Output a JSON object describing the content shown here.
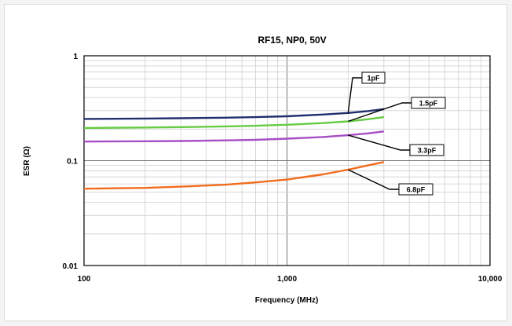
{
  "chart_data": {
    "type": "line",
    "title": "RF15, NP0, 50V",
    "xlabel": "Frequency (MHz)",
    "ylabel": "ESR (Ω)",
    "xscale": "log",
    "yscale": "log",
    "xlim": [
      100,
      10000
    ],
    "ylim": [
      0.01,
      1
    ],
    "grid": true,
    "x_ticks": [
      {
        "value": 100,
        "label": "100"
      },
      {
        "value": 1000,
        "label": "1,000"
      },
      {
        "value": 10000,
        "label": "10,000"
      }
    ],
    "y_ticks": [
      {
        "value": 0.01,
        "label": "0.01"
      },
      {
        "value": 0.1,
        "label": "0.1"
      },
      {
        "value": 1,
        "label": "1"
      }
    ],
    "series": [
      {
        "name": "1pF",
        "color": "#1f2f6e",
        "x": [
          100,
          200,
          300,
          500,
          700,
          1000,
          1500,
          2000,
          2500,
          3000
        ],
        "y": [
          0.25,
          0.252,
          0.254,
          0.257,
          0.26,
          0.265,
          0.275,
          0.285,
          0.297,
          0.31
        ]
      },
      {
        "name": "1.5pF",
        "color": "#66cc44",
        "x": [
          100,
          200,
          300,
          500,
          700,
          1000,
          1500,
          2000,
          2500,
          3000
        ],
        "y": [
          0.205,
          0.207,
          0.209,
          0.212,
          0.215,
          0.22,
          0.228,
          0.237,
          0.248,
          0.26
        ]
      },
      {
        "name": "3.3pF",
        "color": "#a64ec4",
        "x": [
          100,
          200,
          300,
          500,
          700,
          1000,
          1500,
          2000,
          2500,
          3000
        ],
        "y": [
          0.152,
          0.153,
          0.154,
          0.156,
          0.158,
          0.162,
          0.168,
          0.175,
          0.182,
          0.19
        ]
      },
      {
        "name": "6.8pF",
        "color": "#f26b1d",
        "x": [
          100,
          200,
          300,
          500,
          700,
          1000,
          1500,
          2000,
          2500,
          3000
        ],
        "y": [
          0.054,
          0.055,
          0.0565,
          0.059,
          0.062,
          0.066,
          0.074,
          0.082,
          0.09,
          0.097
        ]
      }
    ]
  }
}
